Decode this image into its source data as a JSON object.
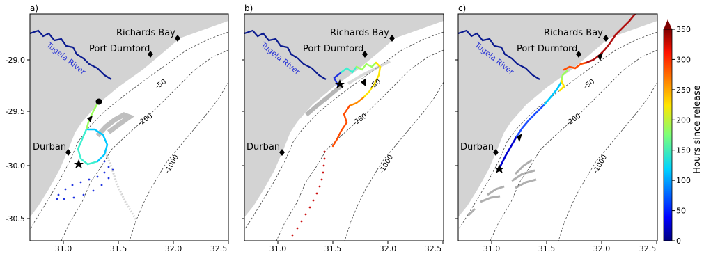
{
  "figure": {
    "x_ticks": [
      "31.0",
      "31.5",
      "32.0",
      "32.5"
    ],
    "y_ticks": [
      "-29.0",
      "-29.5",
      "-30.0",
      "-30.5"
    ],
    "places": [
      "Richards Bay",
      "Port Durnford",
      "Durban"
    ],
    "river_label": "Tugela River",
    "depth_labels": [
      "-50",
      "-200",
      "-1000"
    ],
    "panels": [
      {
        "label": "a)"
      },
      {
        "label": "b)"
      },
      {
        "label": "c)"
      }
    ],
    "colorbar": {
      "title": "Hours since release",
      "ticks": [
        "0",
        "50",
        "100",
        "150",
        "200",
        "250",
        "300",
        "350"
      ],
      "colormap": "jet"
    },
    "colors": {
      "land": "#d3d3d3",
      "river": "#0a1a8f",
      "contour": "#444444"
    }
  }
}
